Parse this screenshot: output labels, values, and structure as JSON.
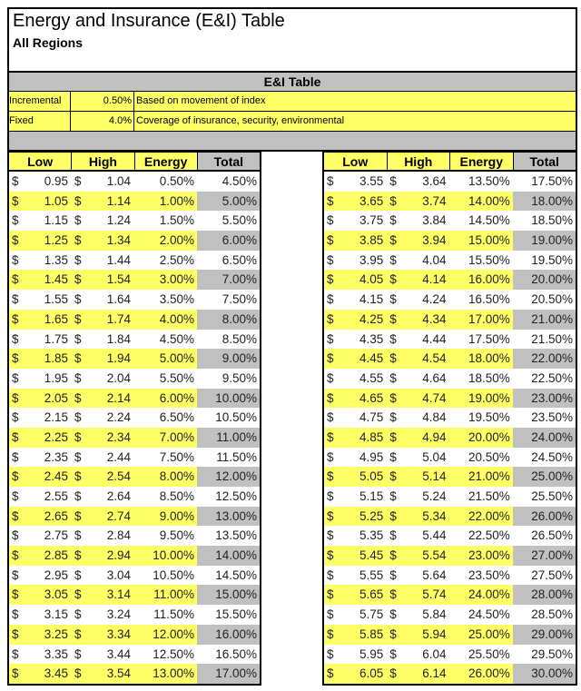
{
  "title": "Energy and Insurance (E&I) Table",
  "subtitle": "All Regions",
  "table_heading": "E&I Table",
  "params": [
    {
      "label": "Incremental",
      "value": "0.50%",
      "desc": "Based on movement of index"
    },
    {
      "label": "Fixed",
      "value": "4.0%",
      "desc": "Coverage of insurance, security, environmental"
    }
  ],
  "columns": [
    "Low",
    "High",
    "Energy",
    "Total"
  ],
  "currency": "$",
  "left_rows": [
    [
      "0.95",
      "1.04",
      "0.50%",
      "4.50%"
    ],
    [
      "1.05",
      "1.14",
      "1.00%",
      "5.00%"
    ],
    [
      "1.15",
      "1.24",
      "1.50%",
      "5.50%"
    ],
    [
      "1.25",
      "1.34",
      "2.00%",
      "6.00%"
    ],
    [
      "1.35",
      "1.44",
      "2.50%",
      "6.50%"
    ],
    [
      "1.45",
      "1.54",
      "3.00%",
      "7.00%"
    ],
    [
      "1.55",
      "1.64",
      "3.50%",
      "7.50%"
    ],
    [
      "1.65",
      "1.74",
      "4.00%",
      "8.00%"
    ],
    [
      "1.75",
      "1.84",
      "4.50%",
      "8.50%"
    ],
    [
      "1.85",
      "1.94",
      "5.00%",
      "9.00%"
    ],
    [
      "1.95",
      "2.04",
      "5.50%",
      "9.50%"
    ],
    [
      "2.05",
      "2.14",
      "6.00%",
      "10.00%"
    ],
    [
      "2.15",
      "2.24",
      "6.50%",
      "10.50%"
    ],
    [
      "2.25",
      "2.34",
      "7.00%",
      "11.00%"
    ],
    [
      "2.35",
      "2.44",
      "7.50%",
      "11.50%"
    ],
    [
      "2.45",
      "2.54",
      "8.00%",
      "12.00%"
    ],
    [
      "2.55",
      "2.64",
      "8.50%",
      "12.50%"
    ],
    [
      "2.65",
      "2.74",
      "9.00%",
      "13.00%"
    ],
    [
      "2.75",
      "2.84",
      "9.50%",
      "13.50%"
    ],
    [
      "2.85",
      "2.94",
      "10.00%",
      "14.00%"
    ],
    [
      "2.95",
      "3.04",
      "10.50%",
      "14.50%"
    ],
    [
      "3.05",
      "3.14",
      "11.00%",
      "15.00%"
    ],
    [
      "3.15",
      "3.24",
      "11.50%",
      "15.50%"
    ],
    [
      "3.25",
      "3.34",
      "12.00%",
      "16.00%"
    ],
    [
      "3.35",
      "3.44",
      "12.50%",
      "16.50%"
    ],
    [
      "3.45",
      "3.54",
      "13.00%",
      "17.00%"
    ]
  ],
  "right_rows": [
    [
      "3.55",
      "3.64",
      "13.50%",
      "17.50%"
    ],
    [
      "3.65",
      "3.74",
      "14.00%",
      "18.00%"
    ],
    [
      "3.75",
      "3.84",
      "14.50%",
      "18.50%"
    ],
    [
      "3.85",
      "3.94",
      "15.00%",
      "19.00%"
    ],
    [
      "3.95",
      "4.04",
      "15.50%",
      "19.50%"
    ],
    [
      "4.05",
      "4.14",
      "16.00%",
      "20.00%"
    ],
    [
      "4.15",
      "4.24",
      "16.50%",
      "20.50%"
    ],
    [
      "4.25",
      "4.34",
      "17.00%",
      "21.00%"
    ],
    [
      "4.35",
      "4.44",
      "17.50%",
      "21.50%"
    ],
    [
      "4.45",
      "4.54",
      "18.00%",
      "22.00%"
    ],
    [
      "4.55",
      "4.64",
      "18.50%",
      "22.50%"
    ],
    [
      "4.65",
      "4.74",
      "19.00%",
      "23.00%"
    ],
    [
      "4.75",
      "4.84",
      "19.50%",
      "23.50%"
    ],
    [
      "4.85",
      "4.94",
      "20.00%",
      "24.00%"
    ],
    [
      "4.95",
      "5.04",
      "20.50%",
      "24.50%"
    ],
    [
      "5.05",
      "5.14",
      "21.00%",
      "25.00%"
    ],
    [
      "5.15",
      "5.24",
      "21.50%",
      "25.50%"
    ],
    [
      "5.25",
      "5.34",
      "22.00%",
      "26.00%"
    ],
    [
      "5.35",
      "5.44",
      "22.50%",
      "26.50%"
    ],
    [
      "5.45",
      "5.54",
      "23.00%",
      "27.00%"
    ],
    [
      "5.55",
      "5.64",
      "23.50%",
      "27.50%"
    ],
    [
      "5.65",
      "5.74",
      "24.00%",
      "28.00%"
    ],
    [
      "5.75",
      "5.84",
      "24.50%",
      "28.50%"
    ],
    [
      "5.85",
      "5.94",
      "25.00%",
      "29.00%"
    ],
    [
      "5.95",
      "6.04",
      "25.50%",
      "29.50%"
    ],
    [
      "6.05",
      "6.14",
      "26.00%",
      "30.00%"
    ]
  ]
}
